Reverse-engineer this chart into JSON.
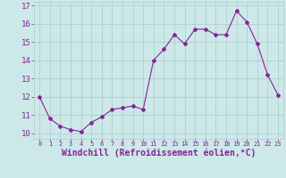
{
  "x": [
    0,
    1,
    2,
    3,
    4,
    5,
    6,
    7,
    8,
    9,
    10,
    11,
    12,
    13,
    14,
    15,
    16,
    17,
    18,
    19,
    20,
    21,
    22,
    23
  ],
  "y": [
    12.0,
    10.8,
    10.4,
    10.2,
    10.1,
    10.6,
    10.9,
    11.3,
    11.4,
    11.5,
    11.3,
    14.0,
    14.6,
    15.4,
    14.9,
    15.7,
    15.7,
    15.4,
    15.4,
    16.7,
    16.1,
    14.9,
    13.2,
    12.1
  ],
  "line_color": "#882299",
  "marker": "D",
  "marker_size": 2.0,
  "bg_color": "#CCE8E8",
  "grid_color": "#AACCCC",
  "xlabel": "Windchill (Refroidissement éolien,°C)",
  "xlim": [
    -0.5,
    23.5
  ],
  "ylim": [
    9.7,
    17.2
  ],
  "yticks": [
    10,
    11,
    12,
    13,
    14,
    15,
    16,
    17
  ],
  "xticks": [
    0,
    1,
    2,
    3,
    4,
    5,
    6,
    7,
    8,
    9,
    10,
    11,
    12,
    13,
    14,
    15,
    16,
    17,
    18,
    19,
    20,
    21,
    22,
    23
  ],
  "tick_color": "#882299",
  "label_color": "#882299",
  "xtick_fontsize": 5.0,
  "ytick_fontsize": 6.5,
  "xlabel_fontsize": 7.0
}
